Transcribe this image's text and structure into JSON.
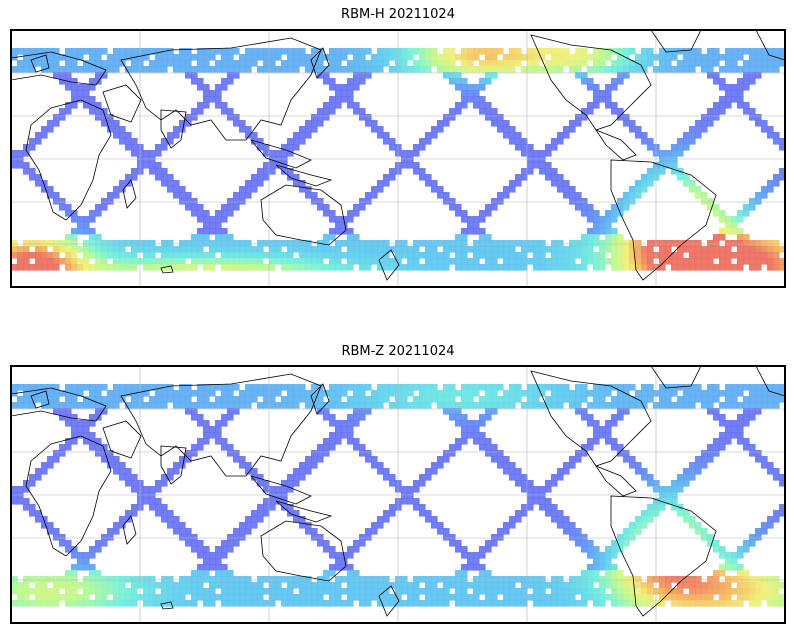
{
  "figure": {
    "panels": [
      {
        "title": "RBM-H 20211024",
        "variant": "H"
      },
      {
        "title": "RBM-Z 20211024",
        "variant": "Z"
      }
    ],
    "colormap": [
      "#6a5df2",
      "#5a8ff5",
      "#58c8f0",
      "#6cf0d8",
      "#b8f88a",
      "#f0f070",
      "#f5b055",
      "#ec6a5a"
    ],
    "land_color": "#000000",
    "grid": true
  }
}
